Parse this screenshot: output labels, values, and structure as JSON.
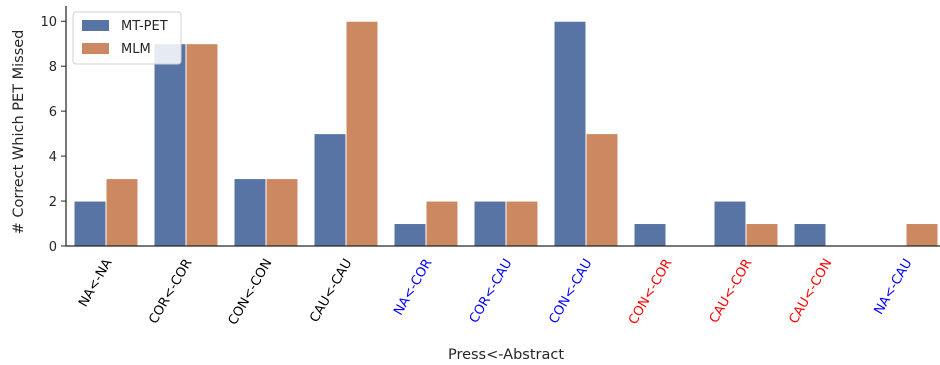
{
  "chart_data": {
    "type": "bar",
    "title": "",
    "xlabel": "Press<-Abstract",
    "ylabel": "# Correct Which PET Missed",
    "ylim": [
      0,
      10.5
    ],
    "yticks": [
      "0",
      "2",
      "4",
      "6",
      "8",
      "10"
    ],
    "grid": false,
    "legend_position": "top-left",
    "categories": [
      {
        "label": "NA<-NA",
        "color": "#000000"
      },
      {
        "label": "COR<-COR",
        "color": "#000000"
      },
      {
        "label": "CON<-CON",
        "color": "#000000"
      },
      {
        "label": "CAU<-CAU",
        "color": "#000000"
      },
      {
        "label": "NA<-COR",
        "color": "#0000ff"
      },
      {
        "label": "COR<-CAU",
        "color": "#0000ff"
      },
      {
        "label": "CON<-CAU",
        "color": "#0000ff"
      },
      {
        "label": "CON<-COR",
        "color": "#ff0000"
      },
      {
        "label": "CAU<-COR",
        "color": "#ff0000"
      },
      {
        "label": "CAU<-CON",
        "color": "#ff0000"
      },
      {
        "label": "NA<-CAU",
        "color": "#0000ff"
      }
    ],
    "series": [
      {
        "name": "MT-PET",
        "color": "#5874a5",
        "values": [
          2,
          9,
          3,
          5,
          1,
          2,
          10,
          1,
          2,
          1,
          0
        ]
      },
      {
        "name": "MLM",
        "color": "#cc8860",
        "values": [
          3,
          9,
          3,
          10,
          2,
          2,
          5,
          0,
          1,
          0,
          1
        ]
      }
    ]
  }
}
